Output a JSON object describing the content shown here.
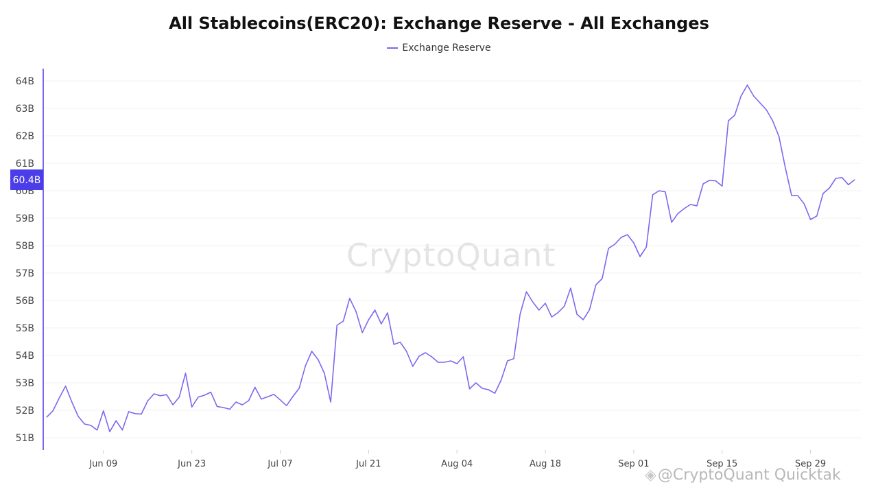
{
  "title": "All Stablecoins(ERC20): Exchange Reserve - All Exchanges",
  "legend": {
    "label": "Exchange Reserve"
  },
  "watermark": "CryptoQuant",
  "footer_watermark": "@CryptoQuant Quicktak",
  "colors": {
    "series": "#7b68ee",
    "axis": "#7b68ee",
    "badge": "#4b3de8",
    "grid": "#f0f0f0",
    "tick": "#444444"
  },
  "chart_data": {
    "type": "line",
    "title": "All Stablecoins(ERC20): Exchange Reserve - All Exchanges",
    "xlabel": "",
    "ylabel": "",
    "ylim": [
      50.7,
      64.5
    ],
    "y_ticks": [
      51,
      52,
      53,
      54,
      55,
      56,
      57,
      58,
      59,
      60,
      61,
      62,
      63,
      64
    ],
    "y_tick_labels": [
      "51B",
      "52B",
      "53B",
      "54B",
      "55B",
      "56B",
      "57B",
      "58B",
      "59B",
      "60B",
      "61B",
      "62B",
      "63B",
      "64B"
    ],
    "x_ticks": [
      {
        "label": "Jun 09",
        "index": 9
      },
      {
        "label": "Jun 23",
        "index": 23
      },
      {
        "label": "Jul 07",
        "index": 37
      },
      {
        "label": "Jul 21",
        "index": 51
      },
      {
        "label": "Aug 04",
        "index": 65
      },
      {
        "label": "Aug 18",
        "index": 79
      },
      {
        "label": "Sep 01",
        "index": 93
      },
      {
        "label": "Sep 15",
        "index": 107
      },
      {
        "label": "Sep 29",
        "index": 121
      }
    ],
    "current_value_label": "60.4B",
    "current_value": 60.4,
    "series": [
      {
        "name": "Exchange Reserve",
        "values": [
          51.75,
          51.98,
          52.45,
          52.88,
          52.3,
          51.78,
          51.5,
          51.45,
          51.28,
          51.98,
          51.22,
          51.62,
          51.28,
          51.95,
          51.88,
          51.86,
          52.34,
          52.6,
          52.53,
          52.57,
          52.2,
          52.48,
          53.35,
          52.12,
          52.48,
          52.55,
          52.66,
          52.14,
          52.1,
          52.04,
          52.3,
          52.2,
          52.35,
          52.84,
          52.41,
          52.49,
          52.58,
          52.38,
          52.17,
          52.5,
          52.8,
          53.62,
          54.15,
          53.85,
          53.35,
          52.3,
          55.1,
          55.25,
          56.08,
          55.6,
          54.83,
          55.3,
          55.65,
          55.15,
          55.55,
          54.4,
          54.48,
          54.15,
          53.6,
          53.97,
          54.1,
          53.95,
          53.75,
          53.75,
          53.8,
          53.7,
          53.95,
          52.78,
          53.0,
          52.8,
          52.75,
          52.62,
          53.1,
          53.8,
          53.88,
          55.5,
          56.32,
          55.95,
          55.65,
          55.9,
          55.4,
          55.56,
          55.79,
          56.45,
          55.5,
          55.3,
          55.67,
          56.57,
          56.8,
          57.9,
          58.05,
          58.3,
          58.4,
          58.1,
          57.6,
          57.95,
          59.85,
          60.0,
          59.96,
          58.85,
          59.17,
          59.35,
          59.5,
          59.45,
          60.25,
          60.38,
          60.36,
          60.17,
          62.55,
          62.75,
          63.45,
          63.85,
          63.45,
          63.2,
          62.95,
          62.55,
          61.98,
          60.85,
          59.83,
          59.82,
          59.52,
          58.95,
          59.08,
          59.9,
          60.1,
          60.45,
          60.48,
          60.22,
          60.4
        ]
      }
    ]
  }
}
